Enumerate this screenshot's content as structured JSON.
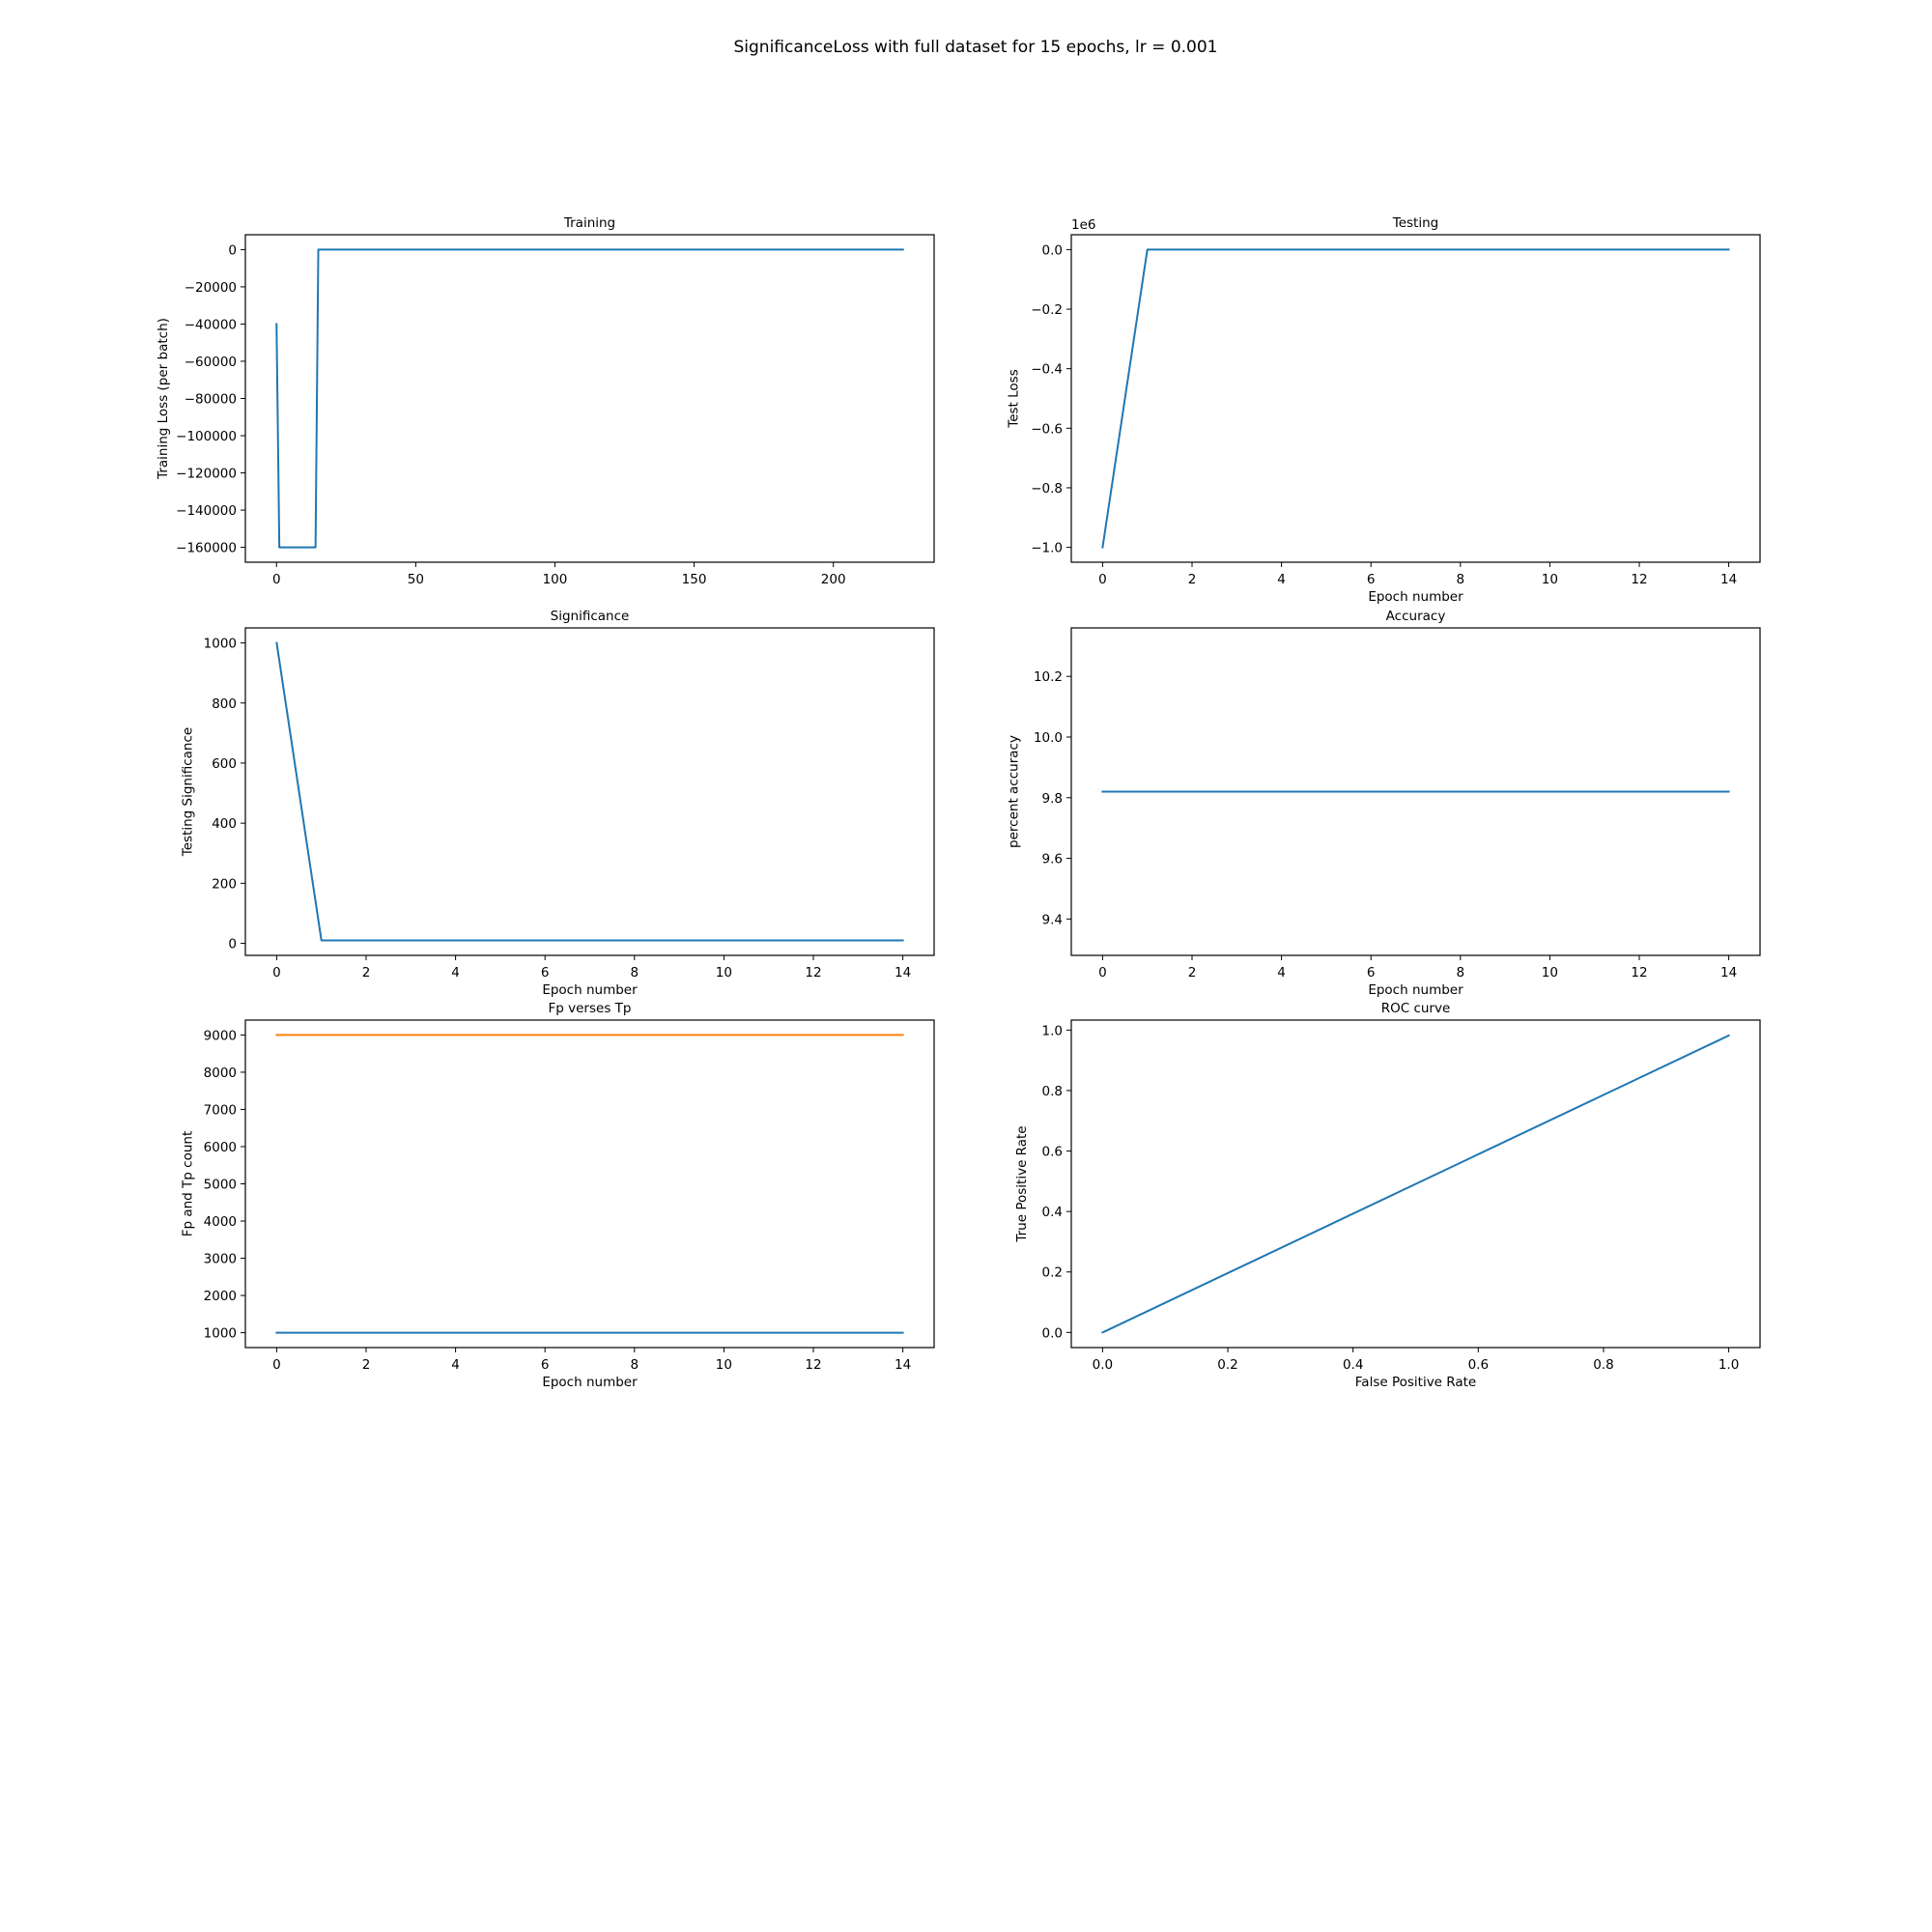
{
  "figure": {
    "title": "SignificanceLoss with full dataset for 15 epochs, lr = 0.001"
  },
  "colors": {
    "series_blue": "#1f77b4",
    "series_orange": "#ff7f0e",
    "axes": "#000000",
    "background": "#ffffff"
  },
  "chart_data": [
    {
      "id": "training",
      "type": "line",
      "title": "Training",
      "xlabel": "",
      "ylabel": "Training Loss (per batch)",
      "xlim": [
        -11.2,
        236.2
      ],
      "ylim": [
        -168000,
        8000
      ],
      "xticks": [
        0,
        50,
        100,
        150,
        200
      ],
      "xticklabels": [
        "0",
        "50",
        "100",
        "150",
        "200"
      ],
      "yticks": [
        0,
        -20000,
        -40000,
        -60000,
        -80000,
        -100000,
        -120000,
        -140000,
        -160000
      ],
      "yticklabels": [
        "0",
        "−20000",
        "−40000",
        "−60000",
        "−80000",
        "−100000",
        "−120000",
        "−140000",
        "−160000"
      ],
      "offset_text": "",
      "grid": false,
      "series": [
        {
          "color": "#1f77b4",
          "x": [
            0,
            1,
            14,
            15,
            225
          ],
          "y": [
            -40000,
            -160000,
            -160000,
            0,
            0
          ]
        }
      ]
    },
    {
      "id": "testing",
      "type": "line",
      "title": "Testing",
      "xlabel": "Epoch number",
      "ylabel": "Test Loss",
      "xlim": [
        -0.7,
        14.7
      ],
      "ylim": [
        -1.05,
        0.05
      ],
      "xticks": [
        0,
        2,
        4,
        6,
        8,
        10,
        12,
        14
      ],
      "xticklabels": [
        "0",
        "2",
        "4",
        "6",
        "8",
        "10",
        "12",
        "14"
      ],
      "yticks": [
        0,
        -0.2,
        -0.4,
        -0.6,
        -0.8,
        -1.0
      ],
      "yticklabels": [
        "0.0",
        "−0.2",
        "−0.4",
        "−0.6",
        "−0.8",
        "−1.0"
      ],
      "offset_text": "1e6",
      "grid": false,
      "series": [
        {
          "color": "#1f77b4",
          "x": [
            0,
            1,
            2,
            3,
            4,
            5,
            6,
            7,
            8,
            9,
            10,
            11,
            12,
            13,
            14
          ],
          "y": [
            -1.0,
            0,
            0,
            0,
            0,
            0,
            0,
            0,
            0,
            0,
            0,
            0,
            0,
            0,
            0
          ]
        }
      ]
    },
    {
      "id": "significance",
      "type": "line",
      "title": "Significance",
      "xlabel": "Epoch number",
      "ylabel": "Testing Significance",
      "xlim": [
        -0.7,
        14.7
      ],
      "ylim": [
        -40,
        1050
      ],
      "xticks": [
        0,
        2,
        4,
        6,
        8,
        10,
        12,
        14
      ],
      "xticklabels": [
        "0",
        "2",
        "4",
        "6",
        "8",
        "10",
        "12",
        "14"
      ],
      "yticks": [
        0,
        200,
        400,
        600,
        800,
        1000
      ],
      "yticklabels": [
        "0",
        "200",
        "400",
        "600",
        "800",
        "1000"
      ],
      "offset_text": "",
      "grid": false,
      "series": [
        {
          "color": "#1f77b4",
          "x": [
            0,
            1,
            2,
            3,
            4,
            5,
            6,
            7,
            8,
            9,
            10,
            11,
            12,
            13,
            14
          ],
          "y": [
            1000,
            10,
            10,
            10,
            10,
            10,
            10,
            10,
            10,
            10,
            10,
            10,
            10,
            10,
            10
          ]
        }
      ]
    },
    {
      "id": "accuracy",
      "type": "line",
      "title": "Accuracy",
      "xlabel": "Epoch number",
      "ylabel": "percent accuracy",
      "xlim": [
        -0.7,
        14.7
      ],
      "ylim": [
        9.28,
        10.36
      ],
      "xticks": [
        0,
        2,
        4,
        6,
        8,
        10,
        12,
        14
      ],
      "xticklabels": [
        "0",
        "2",
        "4",
        "6",
        "8",
        "10",
        "12",
        "14"
      ],
      "yticks": [
        9.4,
        9.6,
        9.8,
        10.0,
        10.2
      ],
      "yticklabels": [
        "9.4",
        "9.6",
        "9.8",
        "10.0",
        "10.2"
      ],
      "offset_text": "",
      "grid": false,
      "series": [
        {
          "color": "#1f77b4",
          "x": [
            0,
            1,
            2,
            3,
            4,
            5,
            6,
            7,
            8,
            9,
            10,
            11,
            12,
            13,
            14
          ],
          "y": [
            9.82,
            9.82,
            9.82,
            9.82,
            9.82,
            9.82,
            9.82,
            9.82,
            9.82,
            9.82,
            9.82,
            9.82,
            9.82,
            9.82,
            9.82
          ]
        }
      ]
    },
    {
      "id": "fp_tp",
      "type": "line",
      "title": "Fp verses Tp",
      "xlabel": "Epoch number",
      "ylabel": "Fp and Tp count",
      "xlim": [
        -0.7,
        14.7
      ],
      "ylim": [
        600,
        9400
      ],
      "xticks": [
        0,
        2,
        4,
        6,
        8,
        10,
        12,
        14
      ],
      "xticklabels": [
        "0",
        "2",
        "4",
        "6",
        "8",
        "10",
        "12",
        "14"
      ],
      "yticks": [
        1000,
        2000,
        3000,
        4000,
        5000,
        6000,
        7000,
        8000,
        9000
      ],
      "yticklabels": [
        "1000",
        "2000",
        "3000",
        "4000",
        "5000",
        "6000",
        "7000",
        "8000",
        "9000"
      ],
      "offset_text": "",
      "grid": false,
      "series": [
        {
          "color": "#1f77b4",
          "x": [
            0,
            1,
            2,
            3,
            4,
            5,
            6,
            7,
            8,
            9,
            10,
            11,
            12,
            13,
            14
          ],
          "y": [
            1000,
            1000,
            1000,
            1000,
            1000,
            1000,
            1000,
            1000,
            1000,
            1000,
            1000,
            1000,
            1000,
            1000,
            1000
          ]
        },
        {
          "color": "#ff7f0e",
          "x": [
            0,
            1,
            2,
            3,
            4,
            5,
            6,
            7,
            8,
            9,
            10,
            11,
            12,
            13,
            14
          ],
          "y": [
            9000,
            9000,
            9000,
            9000,
            9000,
            9000,
            9000,
            9000,
            9000,
            9000,
            9000,
            9000,
            9000,
            9000,
            9000
          ]
        }
      ]
    },
    {
      "id": "roc",
      "type": "line",
      "title": "ROC curve",
      "xlabel": "False Positive Rate",
      "ylabel": "True Positive Rate",
      "xlim": [
        -0.05,
        1.05
      ],
      "ylim": [
        -0.05,
        1.033
      ],
      "xticks": [
        0,
        0.2,
        0.4,
        0.6,
        0.8,
        1.0
      ],
      "xticklabels": [
        "0.0",
        "0.2",
        "0.4",
        "0.6",
        "0.8",
        "1.0"
      ],
      "yticks": [
        0,
        0.2,
        0.4,
        0.6,
        0.8,
        1.0
      ],
      "yticklabels": [
        "0.0",
        "0.2",
        "0.4",
        "0.6",
        "0.8",
        "1.0"
      ],
      "offset_text": "",
      "grid": false,
      "series": [
        {
          "color": "#1f77b4",
          "x": [
            0,
            1.0
          ],
          "y": [
            0,
            0.982
          ]
        }
      ]
    }
  ]
}
